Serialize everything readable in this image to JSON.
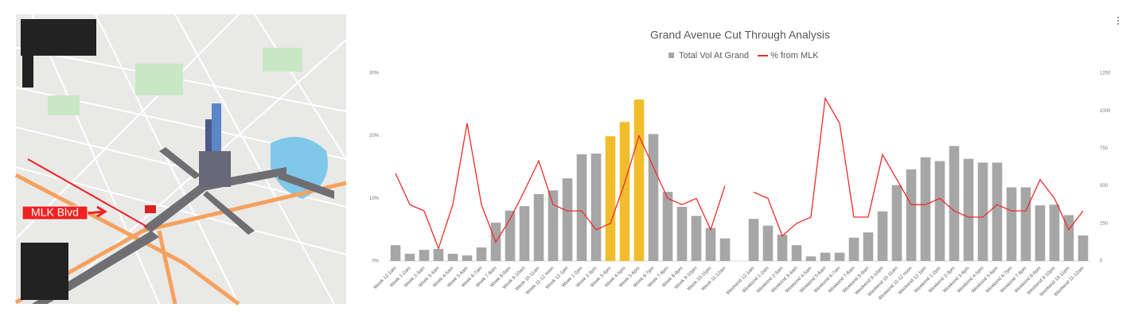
{
  "map": {
    "label": "MLK Blvd"
  },
  "chart_data": {
    "type": "bar_line",
    "title": "Grand Avenue Cut Through Analysis",
    "categories": [
      "Week 12-1am",
      "Week 1-2am",
      "Week 2-3am",
      "Week 3-4am",
      "Week 4-5am",
      "Week 5-6am",
      "Week 6-7am",
      "Week 7-8am",
      "Week 8-9am",
      "Week 9-10am",
      "Week 10-11am",
      "Week 11-12 noon",
      "Week 12-1pm",
      "Week 1-2pm",
      "Week 2-3pm",
      "Week 3-4pm",
      "Week 4-5pm",
      "Week 5-6pm",
      "Week 6-7pm",
      "Week 7-8pm",
      "Week 8-9pm",
      "Week 9-10pm",
      "Week 10-11pm",
      "Week 11-12am",
      null,
      "Weekend 12-1am",
      "Weekend 1-2am",
      "Weekend 2-3am",
      "Weekend 3-4am",
      "Weekend 4-5am",
      "Weekend 5-6am",
      "Weekend 6-7am",
      "Weekend 7-8am",
      "Weekend 8-9am",
      "Weekend 9-10am",
      "Weekend 10-11am",
      "Weekend 11-12 noon",
      "Weekend 12-1pm",
      "Weekend 1-2pm",
      "Weekend 2-3pm",
      "Weekend 3-4pm",
      "Weekend 4-5pm",
      "Weekend 5-6pm",
      "Weekend 6-7pm",
      "Weekend 7-8pm",
      "Weekend 8-9pm",
      "Weekend 9-10pm",
      "Weekend 10-11pm",
      "Weekend 11-12am"
    ],
    "series": [
      {
        "name": "Total Vol At Grand",
        "type": "bar",
        "axis": "y2",
        "color": "#a6a6a6",
        "colors": [
          "#a6a6a6",
          "#a6a6a6",
          "#a6a6a6",
          "#a6a6a6",
          "#a6a6a6",
          "#a6a6a6",
          "#a6a6a6",
          "#a6a6a6",
          "#a6a6a6",
          "#a6a6a6",
          "#a6a6a6",
          "#a6a6a6",
          "#a6a6a6",
          "#a6a6a6",
          "#a6a6a6",
          "#f2bd2c",
          "#f2bd2c",
          "#f2bd2c",
          "#a6a6a6",
          "#a6a6a6",
          "#a6a6a6",
          "#a6a6a6",
          "#a6a6a6",
          "#a6a6a6",
          null,
          "#a6a6a6",
          "#a6a6a6",
          "#a6a6a6",
          "#a6a6a6",
          "#a6a6a6",
          "#a6a6a6",
          "#a6a6a6",
          "#a6a6a6",
          "#a6a6a6",
          "#a6a6a6",
          "#a6a6a6",
          "#a6a6a6",
          "#a6a6a6",
          "#a6a6a6",
          "#a6a6a6",
          "#a6a6a6",
          "#a6a6a6",
          "#a6a6a6",
          "#a6a6a6",
          "#a6a6a6",
          "#a6a6a6",
          "#a6a6a6",
          "#a6a6a6",
          "#a6a6a6"
        ],
        "values": [
          105,
          48,
          74,
          80,
          48,
          37,
          90,
          255,
          335,
          365,
          445,
          470,
          550,
          710,
          715,
          830,
          925,
          1075,
          845,
          460,
          360,
          300,
          220,
          150,
          null,
          280,
          235,
          175,
          105,
          30,
          55,
          55,
          155,
          190,
          330,
          505,
          610,
          690,
          665,
          765,
          680,
          655,
          655,
          490,
          490,
          370,
          375,
          305,
          170
        ]
      },
      {
        "name": "% from MLK",
        "type": "line",
        "color": "#ee2b2b",
        "values": [
          14,
          9,
          8,
          2,
          9,
          22,
          9,
          3,
          6.7,
          11.2,
          16,
          9,
          8,
          8,
          5,
          6,
          12.5,
          20,
          15,
          10,
          9,
          10,
          5,
          12,
          null,
          11,
          10,
          4,
          6,
          7,
          26,
          22,
          7,
          7,
          17,
          13,
          9,
          9,
          10,
          8,
          7,
          7,
          9,
          8,
          8,
          13,
          10,
          5,
          8
        ]
      }
    ],
    "ylim": [
      0,
      30
    ],
    "yticks": [
      {
        "value": 0,
        "label": "0%"
      },
      {
        "value": 10,
        "label": "10%"
      },
      {
        "value": 20,
        "label": "20%"
      },
      {
        "value": 30,
        "label": "30%"
      }
    ],
    "y2lim": [
      0,
      1250
    ],
    "y2ticks": [
      0,
      250,
      500,
      750,
      1000,
      1250
    ],
    "grid": false,
    "legend": "top"
  }
}
